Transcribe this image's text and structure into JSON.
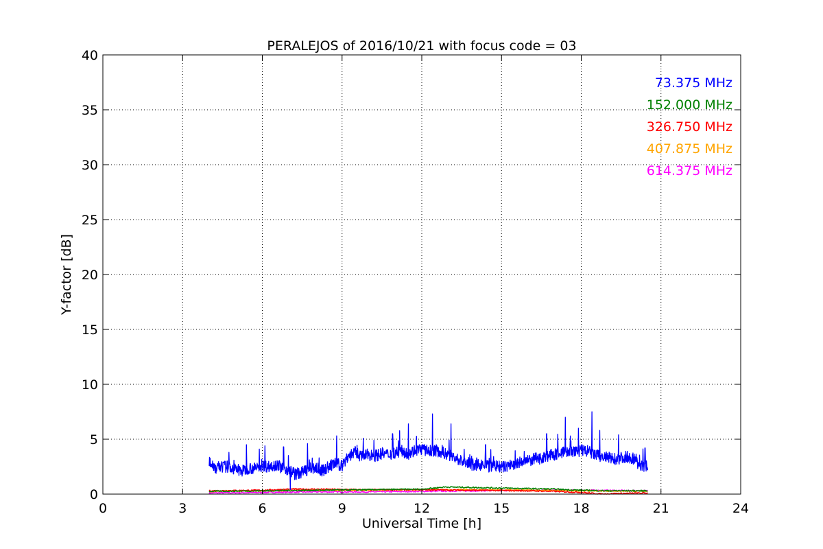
{
  "chart_data": {
    "type": "line",
    "title": "PERALEJOS of 2016/10/21 with focus code = 03",
    "xlabel": "Universal Time [h]",
    "ylabel": "Y-factor [dB]",
    "xlim": [
      0,
      24
    ],
    "ylim": [
      0,
      40
    ],
    "xticks": [
      0,
      3,
      6,
      9,
      12,
      15,
      18,
      21,
      24
    ],
    "yticks": [
      0,
      5,
      10,
      15,
      20,
      25,
      30,
      35,
      40
    ],
    "grid": true,
    "legend_position": "top-right",
    "series": [
      {
        "name": "73.375 MHz",
        "color": "#0000ff",
        "x": [
          4.0,
          4.25,
          4.5,
          4.75,
          5.0,
          5.25,
          5.5,
          5.75,
          6.0,
          6.25,
          6.5,
          6.75,
          7.0,
          7.25,
          7.5,
          7.75,
          8.0,
          8.25,
          8.5,
          8.75,
          9.0,
          9.25,
          9.5,
          9.75,
          10.0,
          10.25,
          10.5,
          10.75,
          11.0,
          11.25,
          11.5,
          11.75,
          12.0,
          12.25,
          12.5,
          12.75,
          13.0,
          13.25,
          13.5,
          13.75,
          14.0,
          14.25,
          14.5,
          14.75,
          15.0,
          15.25,
          15.5,
          15.75,
          16.0,
          16.25,
          16.5,
          16.75,
          17.0,
          17.25,
          17.5,
          17.75,
          18.0,
          18.25,
          18.5,
          18.75,
          19.0,
          19.25,
          19.5,
          19.75,
          20.0,
          20.25,
          20.5
        ],
        "y": [
          3.0,
          2.4,
          2.5,
          2.5,
          2.2,
          2.1,
          2.4,
          2.3,
          2.6,
          2.5,
          2.7,
          2.4,
          2.2,
          1.8,
          2.0,
          2.3,
          2.4,
          2.1,
          2.5,
          2.8,
          2.6,
          3.5,
          3.8,
          3.4,
          3.6,
          3.5,
          3.7,
          3.6,
          3.8,
          3.9,
          3.7,
          4.0,
          4.1,
          3.9,
          4.0,
          3.8,
          3.6,
          3.3,
          3.0,
          2.8,
          2.6,
          2.7,
          2.5,
          2.6,
          2.4,
          2.6,
          2.7,
          2.9,
          3.0,
          3.2,
          3.3,
          3.5,
          3.6,
          3.8,
          3.9,
          3.8,
          4.0,
          3.9,
          3.6,
          3.4,
          3.3,
          3.2,
          3.3,
          3.4,
          3.2,
          2.5,
          2.6
        ],
        "spikes": [
          [
            5.4,
            4.5
          ],
          [
            6.1,
            4.4
          ],
          [
            6.8,
            4.3
          ],
          [
            7.05,
            0.4
          ],
          [
            7.7,
            4.6
          ],
          [
            8.8,
            5.3
          ],
          [
            10.2,
            4.9
          ],
          [
            10.9,
            5.5
          ],
          [
            11.5,
            6.4
          ],
          [
            12.4,
            7.3
          ],
          [
            13.1,
            6.4
          ],
          [
            14.4,
            4.5
          ],
          [
            16.7,
            5.5
          ],
          [
            17.4,
            7.0
          ],
          [
            17.9,
            6.0
          ],
          [
            18.4,
            7.5
          ],
          [
            18.7,
            5.8
          ],
          [
            19.4,
            5.4
          ],
          [
            20.4,
            4.2
          ]
        ]
      },
      {
        "name": "152.000 MHz",
        "color": "#008000",
        "x": [
          4.0,
          6.0,
          8.0,
          10.0,
          12.0,
          12.9,
          14.0,
          15.0,
          16.0,
          17.0,
          18.0,
          19.0,
          20.5
        ],
        "y": [
          0.25,
          0.3,
          0.35,
          0.4,
          0.45,
          0.65,
          0.6,
          0.55,
          0.5,
          0.45,
          0.35,
          0.3,
          0.3
        ]
      },
      {
        "name": "326.750 MHz",
        "color": "#ff0000",
        "x": [
          4.0,
          6.0,
          7.0,
          8.0,
          10.0,
          12.0,
          14.0,
          16.0,
          17.0,
          18.0,
          18.8,
          19.2,
          20.5
        ],
        "y": [
          0.3,
          0.35,
          0.45,
          0.45,
          0.4,
          0.4,
          0.35,
          0.3,
          0.25,
          0.15,
          0.0,
          0.05,
          0.1
        ]
      },
      {
        "name": "407.875 MHz",
        "color": "#ffa500",
        "x": [
          4.0,
          6.0,
          8.0,
          10.0,
          12.0,
          14.0,
          16.0,
          18.0,
          20.5
        ],
        "y": [
          0.25,
          0.3,
          0.35,
          0.35,
          0.4,
          0.4,
          0.35,
          0.3,
          0.25
        ]
      },
      {
        "name": "614.375 MHz",
        "color": "#ff00ff",
        "x": [
          4.0,
          6.0,
          8.0,
          10.0,
          12.0,
          14.0,
          16.0,
          18.0,
          20.5
        ],
        "y": [
          0.1,
          0.15,
          0.2,
          0.2,
          0.25,
          0.3,
          0.35,
          0.35,
          0.3
        ]
      }
    ]
  }
}
